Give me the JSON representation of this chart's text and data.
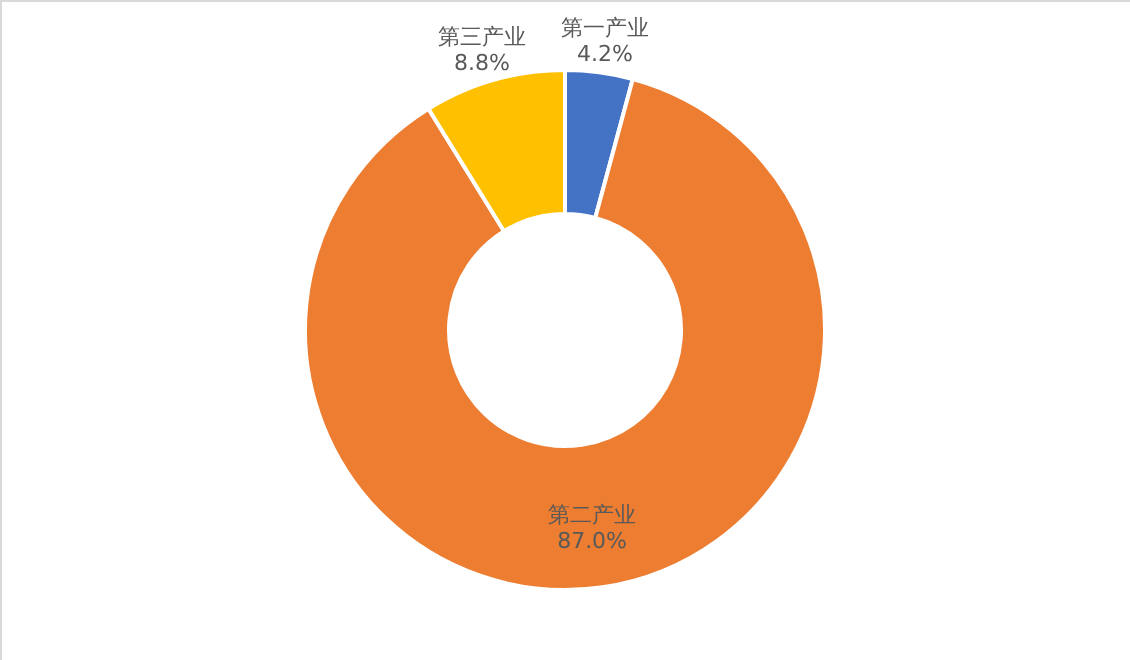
{
  "chart_data": {
    "type": "donut",
    "categories": [
      "第一产业",
      "第二产业",
      "第三产业"
    ],
    "values": [
      4.2,
      87.0,
      8.8
    ],
    "value_labels": [
      "4.2%",
      "87.0%",
      "8.8%"
    ],
    "colors": [
      "#4472c4",
      "#ed7d31",
      "#ffc000"
    ]
  }
}
